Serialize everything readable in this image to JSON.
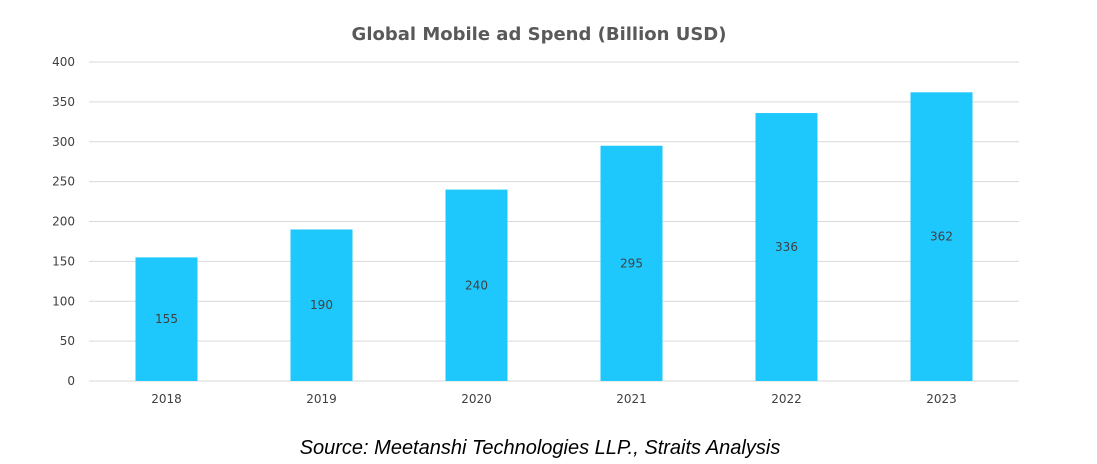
{
  "chart_data": {
    "type": "bar",
    "title": "Global Mobile ad Spend (Billion USD)",
    "categories": [
      "2018",
      "2019",
      "2020",
      "2021",
      "2022",
      "2023"
    ],
    "values": [
      155,
      190,
      240,
      295,
      336,
      362
    ],
    "data_labels": [
      "155",
      "190",
      "240",
      "295",
      "336",
      "362"
    ],
    "ylim": [
      0,
      400
    ],
    "yticks": [
      0,
      50,
      100,
      150,
      200,
      250,
      300,
      350,
      400
    ],
    "ytick_labels": [
      "0",
      "50",
      "100",
      "150",
      "200",
      "250",
      "300",
      "350",
      "400"
    ],
    "grid": true,
    "legend": "none",
    "bar_color": "#1ec8fd",
    "gridline_color": "#d9d9d9"
  },
  "source": "Source: Meetanshi Technologies LLP., Straits Analysis"
}
